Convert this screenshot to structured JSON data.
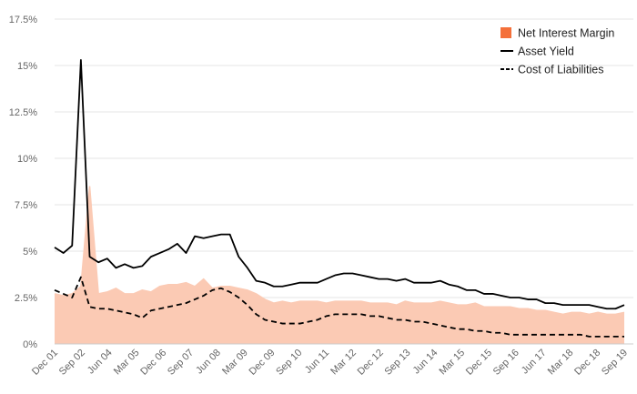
{
  "chart_data": {
    "type": "line",
    "title": "",
    "xlabel": "",
    "ylabel": "",
    "ylim": [
      0,
      17.5
    ],
    "y_ticks": [
      0,
      2.5,
      5,
      7.5,
      10,
      12.5,
      15,
      17.5
    ],
    "y_tick_labels": [
      "0%",
      "2.5%",
      "5%",
      "7.5%",
      "10%",
      "12.5%",
      "15%",
      "17.5%"
    ],
    "x_tick_labels": [
      "Dec 01",
      "Sep 02",
      "Jun 04",
      "Mar 05",
      "Dec 06",
      "Sep 07",
      "Jun 08",
      "Mar 09",
      "Dec 09",
      "Sep 10",
      "Jun 11",
      "Mar 12",
      "Dec 12",
      "Sep 13",
      "Jun 14",
      "Mar 15",
      "Dec 15",
      "Sep 16",
      "Jun 17",
      "Mar 18",
      "Dec 18",
      "Sep 19"
    ],
    "grid": true,
    "legend_position": "top-right",
    "series": [
      {
        "name": "Net Interest Margin",
        "style": "area",
        "color": "#f4703a",
        "fill_color": "#fbcab4",
        "values": [
          2.7,
          2.6,
          2.7,
          3.1,
          8.5,
          2.7,
          2.8,
          3.0,
          2.7,
          2.7,
          2.9,
          2.8,
          3.1,
          3.2,
          3.2,
          3.3,
          3.1,
          3.5,
          3.0,
          3.1,
          3.1,
          3.0,
          2.9,
          2.7,
          2.4,
          2.2,
          2.3,
          2.2,
          2.3,
          2.3,
          2.3,
          2.2,
          2.3,
          2.3,
          2.3,
          2.3,
          2.2,
          2.2,
          2.2,
          2.1,
          2.3,
          2.2,
          2.2,
          2.2,
          2.3,
          2.2,
          2.1,
          2.1,
          2.2,
          2.0,
          2.0,
          2.0,
          2.0,
          1.9,
          1.9,
          1.8,
          1.8,
          1.7,
          1.6,
          1.7,
          1.7,
          1.6,
          1.7,
          1.6,
          1.6,
          1.7
        ]
      },
      {
        "name": "Asset Yield",
        "style": "solid",
        "color": "#000000",
        "values": [
          5.2,
          4.9,
          5.3,
          15.3,
          4.7,
          4.4,
          4.6,
          4.1,
          4.3,
          4.1,
          4.2,
          4.7,
          4.9,
          5.1,
          5.4,
          4.9,
          5.8,
          5.7,
          5.8,
          5.9,
          5.9,
          4.7,
          4.1,
          3.4,
          3.3,
          3.1,
          3.1,
          3.2,
          3.3,
          3.3,
          3.3,
          3.5,
          3.7,
          3.8,
          3.8,
          3.7,
          3.6,
          3.5,
          3.5,
          3.4,
          3.5,
          3.3,
          3.3,
          3.3,
          3.4,
          3.2,
          3.1,
          2.9,
          2.9,
          2.7,
          2.7,
          2.6,
          2.5,
          2.5,
          2.4,
          2.4,
          2.2,
          2.2,
          2.1,
          2.1,
          2.1,
          2.1,
          2.0,
          1.9,
          1.9,
          2.1
        ]
      },
      {
        "name": "Cost of Liabilities",
        "style": "dashed",
        "color": "#000000",
        "values": [
          2.9,
          2.7,
          2.5,
          3.6,
          2.0,
          1.9,
          1.9,
          1.8,
          1.7,
          1.6,
          1.4,
          1.8,
          1.9,
          2.0,
          2.1,
          2.2,
          2.4,
          2.6,
          2.9,
          3.0,
          2.8,
          2.5,
          2.1,
          1.6,
          1.3,
          1.2,
          1.1,
          1.1,
          1.1,
          1.2,
          1.3,
          1.5,
          1.6,
          1.6,
          1.6,
          1.6,
          1.5,
          1.5,
          1.4,
          1.3,
          1.3,
          1.2,
          1.2,
          1.1,
          1.0,
          0.9,
          0.8,
          0.8,
          0.7,
          0.7,
          0.6,
          0.6,
          0.5,
          0.5,
          0.5,
          0.5,
          0.5,
          0.5,
          0.5,
          0.5,
          0.5,
          0.4,
          0.4,
          0.4,
          0.4,
          0.4
        ]
      }
    ]
  }
}
